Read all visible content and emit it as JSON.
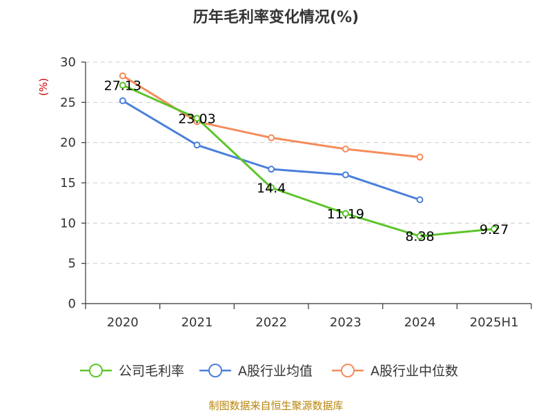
{
  "chart_data": {
    "type": "line",
    "title": "历年毛利率变化情况(%)",
    "ylabel": "(%)",
    "xlabel": "",
    "categories": [
      "2020",
      "2021",
      "2022",
      "2023",
      "2024",
      "2025H1"
    ],
    "ylim": [
      0,
      30
    ],
    "yticks": [
      0,
      5,
      10,
      15,
      20,
      25,
      30
    ],
    "grid": true,
    "legend_position": "bottom",
    "series": [
      {
        "name": "公司毛利率",
        "color": "#5cc42a",
        "values": [
          27.13,
          23.03,
          14.4,
          11.19,
          8.38,
          9.27
        ],
        "labels": [
          "27.13",
          "23.03",
          "14.4",
          "11.19",
          "8.38",
          "9.27"
        ]
      },
      {
        "name": "A股行业均值",
        "color": "#4a7fdb",
        "values": [
          25.2,
          19.7,
          16.7,
          16.0,
          12.9,
          null
        ]
      },
      {
        "name": "A股行业中位数",
        "color": "#f58c5a",
        "values": [
          28.3,
          22.6,
          20.6,
          19.2,
          18.2,
          null
        ]
      }
    ]
  },
  "footer": {
    "source": "制图数据来自恒生聚源数据库"
  }
}
